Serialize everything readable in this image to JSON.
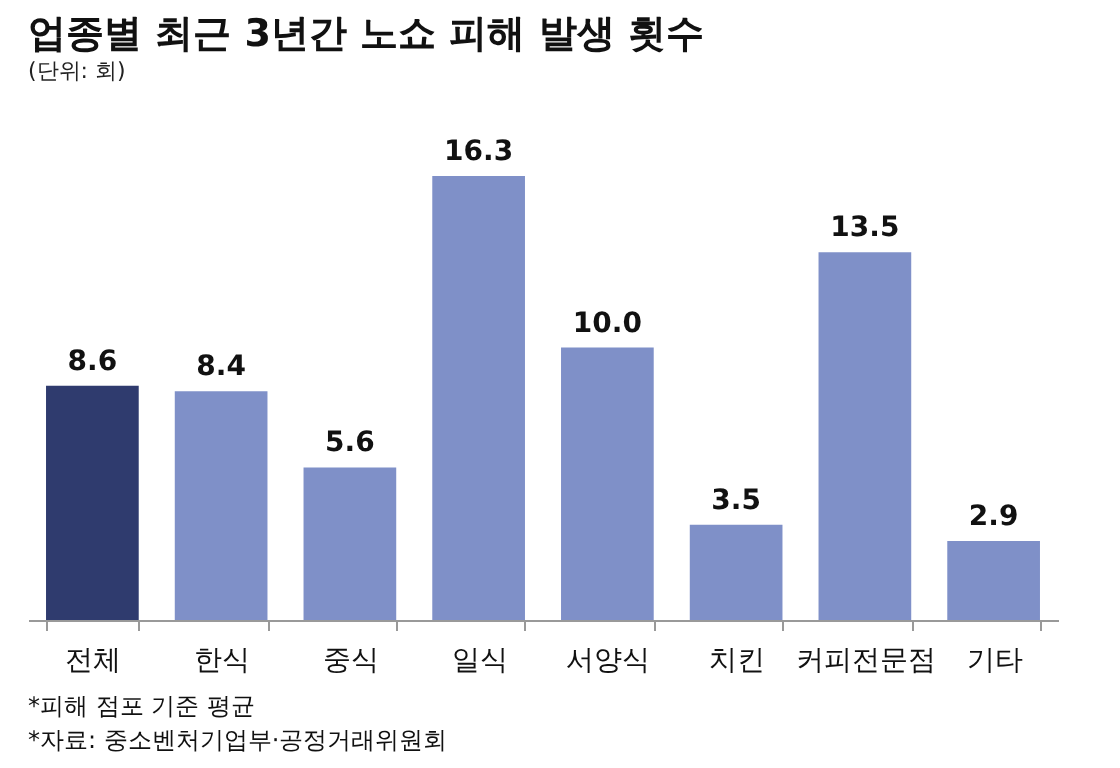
{
  "chart_data": {
    "type": "bar",
    "title": "업종별 최근 3년간 노쇼 피해 발생 횟수",
    "subtitle": "(단위: 회)",
    "categories": [
      "전체",
      "한식",
      "중식",
      "일식",
      "서양식",
      "치킨",
      "커피전문점",
      "기타"
    ],
    "values": [
      8.6,
      8.4,
      5.6,
      16.3,
      10.0,
      3.5,
      13.5,
      2.9
    ],
    "colors": [
      "#2f3b6e",
      "#7f90c8",
      "#7f90c8",
      "#7f90c8",
      "#7f90c8",
      "#7f90c8",
      "#7f90c8",
      "#7f90c8"
    ],
    "value_labels": [
      "8.6",
      "8.4",
      "5.6",
      "16.3",
      "10.0",
      "3.5",
      "13.5",
      "2.9"
    ],
    "grid": false,
    "annotations": [
      "*피해 점포 기준 평균",
      "*자료: 중소벤처기업부·공정거래위원회"
    ]
  }
}
